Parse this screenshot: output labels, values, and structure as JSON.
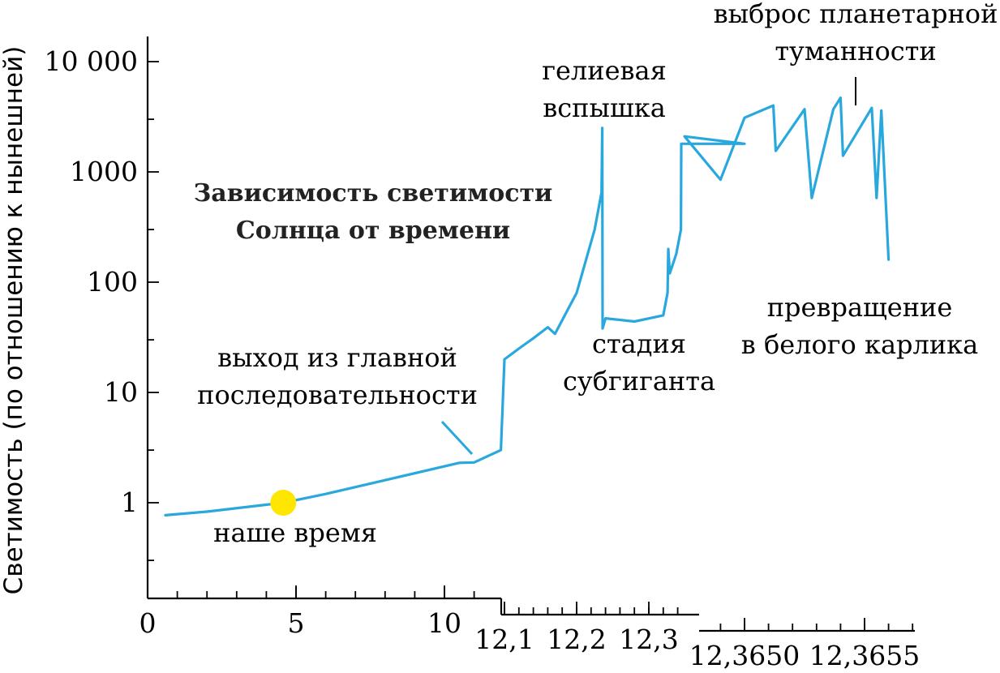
{
  "chart_data": {
    "type": "line",
    "title": [
      "Зависимость светимости",
      "Солнца от времени"
    ],
    "ylabel": "Светимость (по отношению к нынешней)",
    "yscale": "log",
    "ylim": [
      0.1,
      10000
    ],
    "y_ticks": [
      {
        "value": 1,
        "label": "1"
      },
      {
        "value": 10,
        "label": "10"
      },
      {
        "value": 100,
        "label": "100"
      },
      {
        "value": 1000,
        "label": "1000"
      },
      {
        "value": 10000,
        "label": "10 000"
      }
    ],
    "x_segments": [
      {
        "range": [
          0,
          11.2
        ],
        "ticks": [
          {
            "value": 0,
            "label": "0"
          },
          {
            "value": 5,
            "label": "5"
          },
          {
            "value": 10,
            "label": "10"
          }
        ]
      },
      {
        "range": [
          12.095,
          12.345
        ],
        "ticks": [
          {
            "value": 12.1,
            "label": "12,1"
          },
          {
            "value": 12.2,
            "label": "12,2"
          },
          {
            "value": 12.3,
            "label": "12,3"
          }
        ]
      },
      {
        "range": [
          12.3645,
          12.3658
        ],
        "ticks": [
          {
            "value": 12.365,
            "label": "12,3650"
          },
          {
            "value": 12.3655,
            "label": "12,3655"
          }
        ]
      }
    ],
    "series": [
      {
        "color": "#29a8dd",
        "points": [
          [
            0.6,
            0.77
          ],
          [
            2,
            0.83
          ],
          [
            4.57,
            1.0
          ],
          [
            6,
            1.2
          ],
          [
            8,
            1.6
          ],
          [
            10.5,
            2.3
          ],
          [
            11.0,
            2.32
          ],
          [
            12.095,
            3.0
          ],
          [
            12.1,
            20
          ],
          [
            12.12,
            25
          ],
          [
            12.14,
            31
          ],
          [
            12.16,
            39
          ],
          [
            12.17,
            34
          ],
          [
            12.2,
            80
          ],
          [
            12.225,
            300
          ],
          [
            12.2345,
            650
          ],
          [
            12.2355,
            2500
          ],
          [
            12.236,
            38
          ],
          [
            12.24,
            47
          ],
          [
            12.28,
            44
          ],
          [
            12.32,
            50
          ],
          [
            12.326,
            80
          ],
          [
            12.327,
            200
          ],
          [
            12.329,
            120
          ],
          [
            12.338,
            180
          ],
          [
            12.3445,
            300
          ],
          [
            12.345,
            1800
          ],
          [
            12.365,
            1800
          ],
          [
            12.36475,
            2100
          ],
          [
            12.3649,
            850
          ],
          [
            12.365,
            3100
          ],
          [
            12.36512,
            4000
          ],
          [
            12.36513,
            1550
          ],
          [
            12.36525,
            3700
          ],
          [
            12.36528,
            580
          ],
          [
            12.36537,
            3700
          ],
          [
            12.3654,
            4700
          ],
          [
            12.36541,
            1400
          ],
          [
            12.36553,
            3800
          ],
          [
            12.36555,
            580
          ],
          [
            12.36557,
            3600
          ],
          [
            12.3656,
            160
          ]
        ]
      }
    ],
    "highlight_point": {
      "x": 4.57,
      "y": 1.0,
      "color": "#ffe600",
      "label": "наше время"
    },
    "annotations": {
      "ms_exit": [
        "выход из главной",
        "последовательности"
      ],
      "helium_flash": [
        "гелиевая",
        "вспышка"
      ],
      "subgiant": [
        "стадия",
        "субгиганта"
      ],
      "nebula": [
        "выброс планетарной",
        "туманности"
      ],
      "white_dwarf": [
        "превращение",
        "в белого карлика"
      ]
    }
  }
}
